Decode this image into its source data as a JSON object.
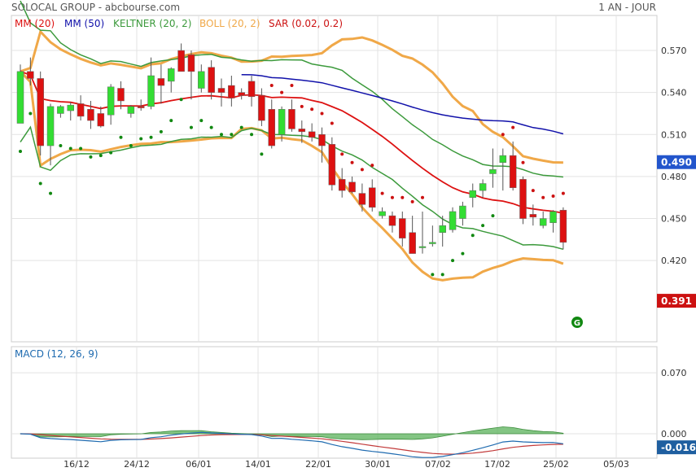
{
  "header": {
    "title": "SOLOCAL GROUP - abcbourse.com",
    "period": "1 AN - JOUR"
  },
  "legend": [
    {
      "label": "MM (20)",
      "color": "#dd1111"
    },
    {
      "label": "MM (50)",
      "color": "#1111aa"
    },
    {
      "label": "KELTNER (20, 2)",
      "color": "#3c9a3c"
    },
    {
      "label": "BOLL (20, 2)",
      "color": "#f0a848"
    },
    {
      "label": "SAR (0.02, 0.2)",
      "color": "#cc1111"
    }
  ],
  "macd_label": "MACD (12, 26, 9)",
  "signal_marker": "G",
  "chart_data": [
    {
      "type": "candlestick",
      "title": "",
      "x": [
        "10/12",
        "11/12",
        "12/12",
        "13/12",
        "14/12",
        "17/12",
        "18/12",
        "19/12",
        "20/12",
        "21/12",
        "24/12",
        "27/12",
        "28/12",
        "31/12",
        "02/01",
        "03/01",
        "04/01",
        "07/01",
        "08/01",
        "09/01",
        "10/01",
        "11/01",
        "14/01",
        "15/01",
        "16/01",
        "17/01",
        "18/01",
        "21/01",
        "22/01",
        "23/01",
        "24/01",
        "25/01",
        "28/01",
        "29/01",
        "30/01",
        "31/01",
        "01/02",
        "04/02",
        "05/02",
        "06/02",
        "07/02",
        "08/02",
        "11/02",
        "12/02",
        "13/02",
        "14/02",
        "15/02",
        "18/02",
        "19/02",
        "20/02",
        "21/02",
        "22/02",
        "25/02",
        "26/02",
        "27/02"
      ],
      "ohlc": [
        [
          0.518,
          0.56,
          0.518,
          0.555
        ],
        [
          0.555,
          0.565,
          0.545,
          0.55
        ],
        [
          0.55,
          0.555,
          0.495,
          0.502
        ],
        [
          0.502,
          0.532,
          0.488,
          0.53
        ],
        [
          0.525,
          0.531,
          0.522,
          0.53
        ],
        [
          0.527,
          0.533,
          0.52,
          0.531
        ],
        [
          0.532,
          0.538,
          0.52,
          0.523
        ],
        [
          0.528,
          0.534,
          0.514,
          0.52
        ],
        [
          0.525,
          0.53,
          0.515,
          0.516
        ],
        [
          0.524,
          0.546,
          0.517,
          0.544
        ],
        [
          0.543,
          0.548,
          0.528,
          0.534
        ],
        [
          0.525,
          0.531,
          0.522,
          0.53
        ],
        [
          0.53,
          0.535,
          0.527,
          0.529
        ],
        [
          0.53,
          0.565,
          0.528,
          0.552
        ],
        [
          0.55,
          0.56,
          0.532,
          0.545
        ],
        [
          0.548,
          0.558,
          0.54,
          0.557
        ],
        [
          0.57,
          0.575,
          0.555,
          0.555
        ],
        [
          0.567,
          0.57,
          0.535,
          0.555
        ],
        [
          0.543,
          0.56,
          0.54,
          0.555
        ],
        [
          0.558,
          0.563,
          0.535,
          0.54
        ],
        [
          0.543,
          0.55,
          0.53,
          0.54
        ],
        [
          0.545,
          0.552,
          0.53,
          0.536
        ],
        [
          0.54,
          0.543,
          0.535,
          0.538
        ],
        [
          0.548,
          0.552,
          0.53,
          0.537
        ],
        [
          0.538,
          0.543,
          0.516,
          0.52
        ],
        [
          0.528,
          0.535,
          0.5,
          0.502
        ],
        [
          0.51,
          0.53,
          0.505,
          0.528
        ],
        [
          0.528,
          0.535,
          0.512,
          0.514
        ],
        [
          0.514,
          0.52,
          0.504,
          0.512
        ],
        [
          0.512,
          0.518,
          0.505,
          0.508
        ],
        [
          0.51,
          0.515,
          0.49,
          0.502
        ],
        [
          0.503,
          0.508,
          0.47,
          0.474
        ],
        [
          0.478,
          0.486,
          0.465,
          0.47
        ],
        [
          0.476,
          0.48,
          0.468,
          0.469
        ],
        [
          0.468,
          0.475,
          0.455,
          0.46
        ],
        [
          0.472,
          0.478,
          0.455,
          0.458
        ],
        [
          0.452,
          0.458,
          0.45,
          0.455
        ],
        [
          0.452,
          0.455,
          0.44,
          0.445
        ],
        [
          0.45,
          0.455,
          0.43,
          0.436
        ],
        [
          0.44,
          0.452,
          0.425,
          0.425
        ],
        [
          0.43,
          0.455,
          0.425,
          0.43
        ],
        [
          0.432,
          0.445,
          0.43,
          0.433
        ],
        [
          0.44,
          0.452,
          0.43,
          0.445
        ],
        [
          0.442,
          0.458,
          0.44,
          0.455
        ],
        [
          0.45,
          0.462,
          0.445,
          0.459
        ],
        [
          0.465,
          0.475,
          0.458,
          0.47
        ],
        [
          0.47,
          0.478,
          0.465,
          0.475
        ],
        [
          0.482,
          0.5,
          0.472,
          0.485
        ],
        [
          0.49,
          0.5,
          0.47,
          0.495
        ],
        [
          0.495,
          0.505,
          0.47,
          0.472
        ],
        [
          0.478,
          0.48,
          0.446,
          0.45
        ],
        [
          0.453,
          0.46,
          0.445,
          0.451
        ],
        [
          0.445,
          0.455,
          0.443,
          0.45
        ],
        [
          0.447,
          0.456,
          0.44,
          0.455
        ],
        [
          0.456,
          0.458,
          0.428,
          0.433
        ]
      ],
      "last_value": 0.391,
      "mm50_value": 0.49,
      "ylim": [
        0.362,
        0.595
      ],
      "yticks": [
        0.42,
        0.45,
        0.48,
        0.51,
        0.54,
        0.57
      ],
      "grid": true
    },
    {
      "type": "line",
      "title": "",
      "yticks": [
        0.0,
        0.07
      ],
      "last_value": -0.016,
      "ylim": [
        -0.028,
        0.1
      ],
      "grid": true
    }
  ],
  "xticks": [
    "16/12",
    "24/12",
    "06/01",
    "14/01",
    "22/01",
    "30/01",
    "07/02",
    "17/02",
    "25/02",
    "05/03"
  ],
  "colors": {
    "up": "#33dd33",
    "down": "#dd1111",
    "mm20": "#dd1111",
    "mm50": "#1111aa",
    "keltner": "#3c9a3c",
    "boll": "#f0a848",
    "sar_above": "#cc1111",
    "sar_below": "#118811",
    "macd_line": "#1f6bb0",
    "signal_line": "#c23a3a",
    "hist_fill": "#5ab25a",
    "mm50_badge": "#2255cc",
    "last_badge": "#cc1111",
    "macd_badge": "#1f5fa0"
  }
}
